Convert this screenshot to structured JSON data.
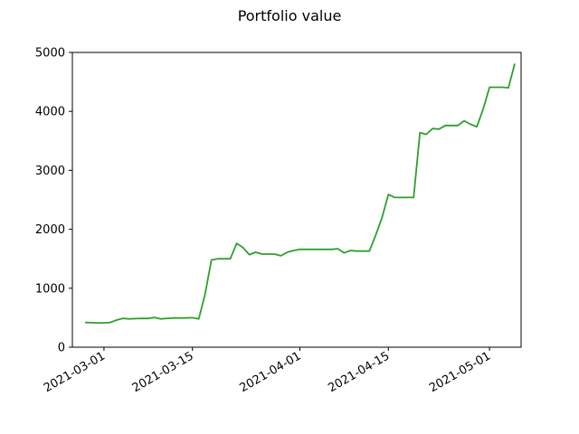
{
  "chart_data": {
    "type": "line",
    "title": "Portfolio value",
    "xlabel": "",
    "ylabel": "",
    "ylim": [
      0,
      5000
    ],
    "xlim": [
      "2021-02-24",
      "2021-05-06"
    ],
    "y_ticks": [
      0,
      1000,
      2000,
      3000,
      4000,
      5000
    ],
    "x_ticks": [
      "2021-03-01",
      "2021-03-15",
      "2021-04-01",
      "2021-04-15",
      "2021-05-01"
    ],
    "grid": false,
    "legend": "none",
    "line_color": "#2ca02c",
    "series": [
      {
        "x": [
          "2021-02-26",
          "2021-02-27",
          "2021-02-28",
          "2021-03-01",
          "2021-03-02",
          "2021-03-03",
          "2021-03-04",
          "2021-03-05",
          "2021-03-06",
          "2021-03-07",
          "2021-03-08",
          "2021-03-09",
          "2021-03-10",
          "2021-03-11",
          "2021-03-12",
          "2021-03-13",
          "2021-03-14",
          "2021-03-15",
          "2021-03-16",
          "2021-03-17",
          "2021-03-18",
          "2021-03-19",
          "2021-03-20",
          "2021-03-21",
          "2021-03-22",
          "2021-03-23",
          "2021-03-24",
          "2021-03-25",
          "2021-03-26",
          "2021-03-27",
          "2021-03-28",
          "2021-03-29",
          "2021-03-30",
          "2021-03-31",
          "2021-04-01",
          "2021-04-02",
          "2021-04-03",
          "2021-04-04",
          "2021-04-05",
          "2021-04-06",
          "2021-04-07",
          "2021-04-08",
          "2021-04-09",
          "2021-04-10",
          "2021-04-11",
          "2021-04-12",
          "2021-04-13",
          "2021-04-14",
          "2021-04-15",
          "2021-04-16",
          "2021-04-17",
          "2021-04-18",
          "2021-04-19",
          "2021-04-20",
          "2021-04-21",
          "2021-04-22",
          "2021-04-23",
          "2021-04-24",
          "2021-04-25",
          "2021-04-26",
          "2021-04-27",
          "2021-04-28",
          "2021-04-29",
          "2021-04-30",
          "2021-05-01",
          "2021-05-02",
          "2021-05-03",
          "2021-05-04",
          "2021-05-05"
        ],
        "values": [
          420,
          415,
          412,
          412,
          420,
          460,
          490,
          480,
          485,
          490,
          488,
          505,
          480,
          490,
          495,
          495,
          495,
          500,
          480,
          900,
          1480,
          1500,
          1500,
          1500,
          1760,
          1690,
          1570,
          1610,
          1580,
          1580,
          1580,
          1550,
          1610,
          1640,
          1660,
          1660,
          1660,
          1660,
          1660,
          1660,
          1670,
          1600,
          1640,
          1630,
          1630,
          1630,
          1900,
          2200,
          2590,
          2540,
          2540,
          2540,
          2540,
          3640,
          3610,
          3710,
          3700,
          3760,
          3760,
          3760,
          3840,
          3780,
          3740,
          4040,
          4410,
          4410,
          4410,
          4400,
          4810
        ]
      }
    ]
  }
}
